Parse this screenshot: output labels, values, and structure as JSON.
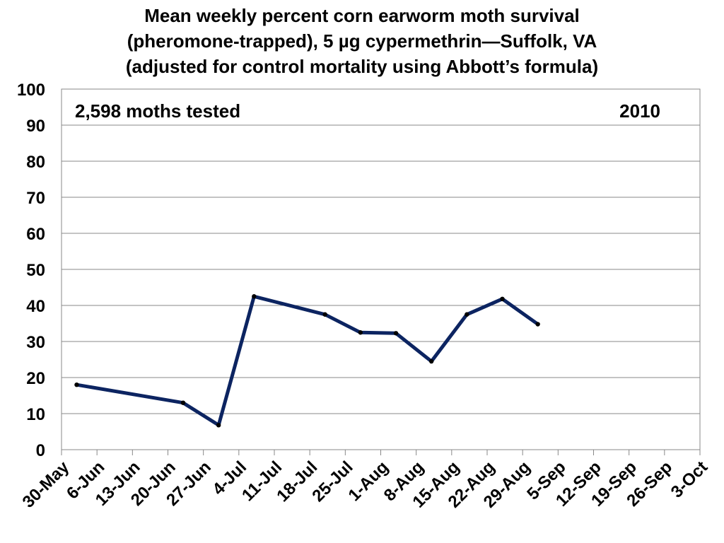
{
  "chart_data": {
    "type": "line",
    "title": [
      "Mean weekly percent corn earworm moth survival",
      "(pheromone-trapped), 5 µg cypermethrin—Suffolk, VA",
      "(adjusted for control mortality using Abbott’s formula)"
    ],
    "annotations": {
      "moths_tested": "2,598 moths tested",
      "year": "2010"
    },
    "xlabel": "",
    "ylabel": "",
    "ylim": [
      0,
      100
    ],
    "yticks": [
      "0",
      "10",
      "20",
      "30",
      "40",
      "50",
      "60",
      "70",
      "80",
      "90",
      "100"
    ],
    "categories": [
      "30-May",
      "6-Jun",
      "13-Jun",
      "20-Jun",
      "27-Jun",
      "4-Jul",
      "11-Jul",
      "18-Jul",
      "25-Jul",
      "1-Aug",
      "8-Aug",
      "15-Aug",
      "22-Aug",
      "29-Aug",
      "5-Sep",
      "12-Sep",
      "19-Sep",
      "26-Sep",
      "3-Oct"
    ],
    "grid": true,
    "series": [
      {
        "color": "#0c2461",
        "points": [
          {
            "x": "2010-06-02",
            "y": 18.0
          },
          {
            "x": "2010-06-23",
            "y": 13.0
          },
          {
            "x": "2010-06-30",
            "y": 6.8
          },
          {
            "x": "2010-07-07",
            "y": 42.5
          },
          {
            "x": "2010-07-21",
            "y": 37.5
          },
          {
            "x": "2010-07-28",
            "y": 32.5
          },
          {
            "x": "2010-08-04",
            "y": 32.3
          },
          {
            "x": "2010-08-11",
            "y": 24.5
          },
          {
            "x": "2010-08-18",
            "y": 37.5
          },
          {
            "x": "2010-08-25",
            "y": 41.8
          },
          {
            "x": "2010-09-01",
            "y": 34.8
          }
        ]
      }
    ]
  }
}
